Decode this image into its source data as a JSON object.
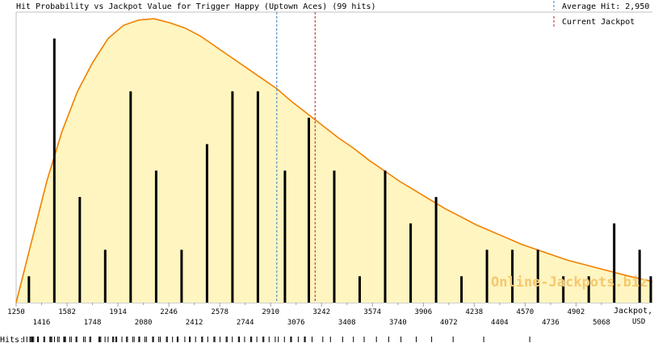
{
  "chart_data": {
    "type": "bar",
    "title": "Hit Probability vs Jackpot Value for Trigger Happy (Uptown Aces) (99 hits)",
    "xlabel": "Jackpot,",
    "xlabel_unit": "USD",
    "xlim": [
      1250,
      5400
    ],
    "ylim": [
      0,
      11
    ],
    "x_ticks_upper": [
      1250,
      1582,
      1914,
      2246,
      2578,
      2910,
      3242,
      3574,
      3906,
      4238,
      4570,
      4902
    ],
    "x_ticks_lower": [
      1416,
      1748,
      2080,
      2412,
      2744,
      3076,
      3408,
      3740,
      4072,
      4404,
      4736,
      5068
    ],
    "bars": {
      "x": [
        1333,
        1499,
        1665,
        1831,
        1997,
        2163,
        2329,
        2495,
        2661,
        2827,
        3003,
        3159,
        3325,
        3491,
        3657,
        3823,
        3989,
        4155,
        4321,
        4487,
        4653,
        4819,
        4985,
        5151,
        5317,
        5400
      ],
      "values": [
        1,
        10,
        4,
        2,
        8,
        5,
        2,
        6,
        8,
        8,
        5,
        7,
        5,
        1,
        5,
        3,
        4,
        1,
        2,
        2,
        2,
        1,
        1,
        3,
        2,
        1
      ]
    },
    "curve": {
      "name": "Hit probability",
      "x": [
        1250,
        1350,
        1450,
        1550,
        1650,
        1750,
        1850,
        1950,
        2050,
        2150,
        2250,
        2350,
        2450,
        2550,
        2650,
        2750,
        2850,
        2950,
        3050,
        3150,
        3250,
        3350,
        3450,
        3550,
        3650,
        3750,
        3850,
        3950,
        4050,
        4150,
        4250,
        4350,
        4450,
        4550,
        4650,
        4750,
        4850,
        4950,
        5050,
        5150,
        5250,
        5400
      ],
      "y": [
        0.0,
        2.3,
        4.6,
        6.5,
        8.0,
        9.1,
        10.0,
        10.5,
        10.7,
        10.75,
        10.6,
        10.4,
        10.1,
        9.7,
        9.3,
        8.9,
        8.5,
        8.1,
        7.6,
        7.15,
        6.7,
        6.25,
        5.85,
        5.4,
        5.0,
        4.6,
        4.25,
        3.9,
        3.55,
        3.25,
        2.95,
        2.7,
        2.45,
        2.2,
        2.0,
        1.8,
        1.6,
        1.45,
        1.3,
        1.15,
        1.0,
        0.8
      ]
    },
    "average_hit": {
      "label": "Average Hit: 2,950",
      "x": 2950
    },
    "current_jackpot": {
      "label": "Current Jackpot",
      "x": 3200
    },
    "watermark": "Online-Jackpots.biz",
    "hits_label": "Hits:",
    "hits_x": [
      1300,
      1320,
      1340,
      1346,
      1352,
      1358,
      1365,
      1390,
      1395,
      1430,
      1436,
      1470,
      1476,
      1482,
      1500,
      1520,
      1530,
      1560,
      1566,
      1572,
      1600,
      1610,
      1640,
      1646,
      1690,
      1700,
      1730,
      1736,
      1790,
      1796,
      1802,
      1830,
      1850,
      1880,
      1886,
      1900,
      1906,
      1940,
      1970,
      1976,
      2010,
      2020,
      2050,
      2056,
      2090,
      2100,
      2140,
      2146,
      2180,
      2190,
      2230,
      2236,
      2270,
      2300,
      2306,
      2350,
      2380,
      2386,
      2420,
      2460,
      2466,
      2500,
      2540,
      2546,
      2580,
      2620,
      2626,
      2660,
      2700,
      2706,
      2740,
      2780,
      2786,
      2820,
      2860,
      2866,
      2900,
      2940,
      2960,
      3000,
      3040,
      3046,
      3090,
      3130,
      3136,
      3180,
      3250,
      3300,
      3380,
      3450,
      3520,
      3600,
      3680,
      3760,
      3860,
      3960,
      4100,
      4300,
      4600
    ]
  },
  "colors": {
    "fill": "#fff5c0",
    "curve": "#f08000",
    "bar": "#000000",
    "average_line": "#3a7fc0",
    "jackpot_line": "#c02020",
    "watermark": "#f5c870",
    "axis": "#a0a0a0"
  }
}
